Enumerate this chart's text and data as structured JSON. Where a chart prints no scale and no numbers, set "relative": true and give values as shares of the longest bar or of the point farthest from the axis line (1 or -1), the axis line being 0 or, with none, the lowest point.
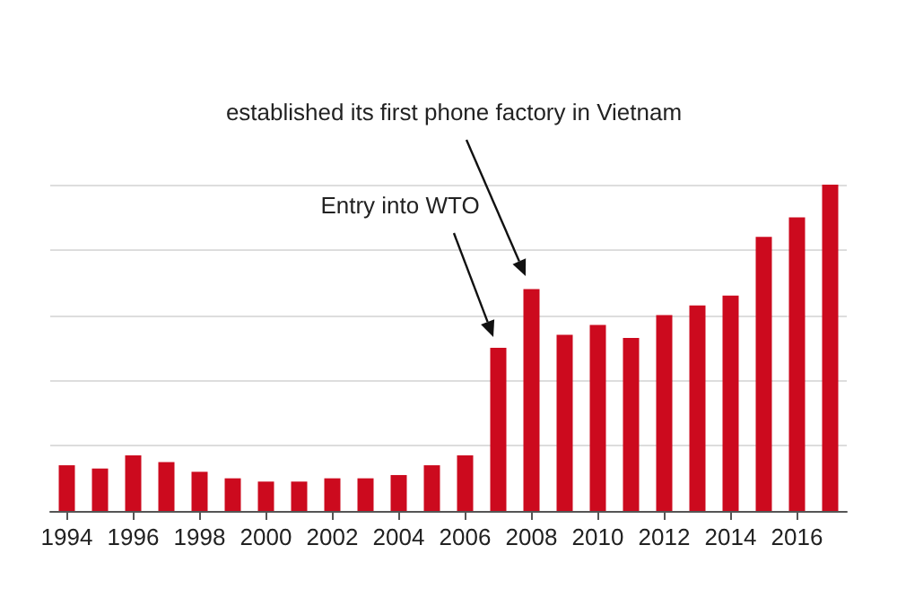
{
  "chart_data": {
    "type": "bar",
    "relative": true,
    "x": [
      1994,
      1995,
      1996,
      1997,
      1998,
      1999,
      2000,
      2001,
      2002,
      2003,
      2004,
      2005,
      2006,
      2007,
      2008,
      2009,
      2010,
      2011,
      2012,
      2013,
      2014,
      2015,
      2016,
      2017
    ],
    "xlim": [
      1993.5,
      2017.5
    ],
    "xticks": [
      1994,
      1996,
      1998,
      2000,
      2002,
      2004,
      2006,
      2008,
      2010,
      2012,
      2014,
      2016
    ],
    "values": [
      0.14,
      0.13,
      0.17,
      0.15,
      0.12,
      0.1,
      0.09,
      0.09,
      0.1,
      0.1,
      0.11,
      0.14,
      0.17,
      0.5,
      0.68,
      0.54,
      0.57,
      0.53,
      0.6,
      0.63,
      0.66,
      0.84,
      0.9,
      1
    ],
    "color": "#cc0a1e",
    "grid": "y",
    "annotations": [
      "Entry into WTO",
      "established its first phone factory in Vietnam"
    ]
  }
}
